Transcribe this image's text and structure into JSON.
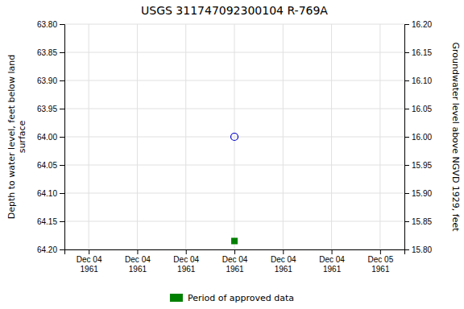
{
  "chart_data": {
    "type": "scatter",
    "title": "USGS 311747092300104 R-769A",
    "y_label": "Depth to water level, feet below land\nsurface",
    "y2_label": "Groundwater level above NGVD 1929, feet",
    "categories": [
      "Dec 04\n1961",
      "Dec 04\n1961",
      "Dec 04\n1961",
      "Dec 04\n1961",
      "Dec 04\n1961",
      "Dec 04\n1961",
      "Dec 05\n1961"
    ],
    "series": [
      {
        "color": "#0000cc",
        "marker": "circle-open",
        "values": [
          null,
          null,
          null,
          64.0,
          null,
          null,
          null
        ]
      },
      {
        "name": "Period of approved data",
        "color": "#008000",
        "marker": "square",
        "values": [
          null,
          null,
          null,
          64.185,
          null,
          null,
          null
        ]
      }
    ],
    "ylim": [
      64.2,
      63.8
    ],
    "yticks": [
      {
        "value": 63.8,
        "label": "63.80"
      },
      {
        "value": 63.85,
        "label": "63.85"
      },
      {
        "value": 63.9,
        "label": "63.90"
      },
      {
        "value": 63.95,
        "label": "63.95"
      },
      {
        "value": 64.0,
        "label": "64.00"
      },
      {
        "value": 64.05,
        "label": "64.05"
      },
      {
        "value": 64.1,
        "label": "64.10"
      },
      {
        "value": 64.15,
        "label": "64.15"
      },
      {
        "value": 64.2,
        "label": "64.20"
      }
    ],
    "y2lim": [
      15.8,
      16.2
    ],
    "y2ticks": [
      {
        "value": 15.8,
        "label": "15.80"
      },
      {
        "value": 15.85,
        "label": "15.85"
      },
      {
        "value": 15.9,
        "label": "15.90"
      },
      {
        "value": 15.95,
        "label": "15.95"
      },
      {
        "value": 16.0,
        "label": "16.00"
      },
      {
        "value": 16.05,
        "label": "16.05"
      },
      {
        "value": 16.1,
        "label": "16.10"
      },
      {
        "value": 16.15,
        "label": "16.15"
      },
      {
        "value": 16.2,
        "label": "16.20"
      }
    ],
    "grid": true,
    "legend": "bottom"
  }
}
